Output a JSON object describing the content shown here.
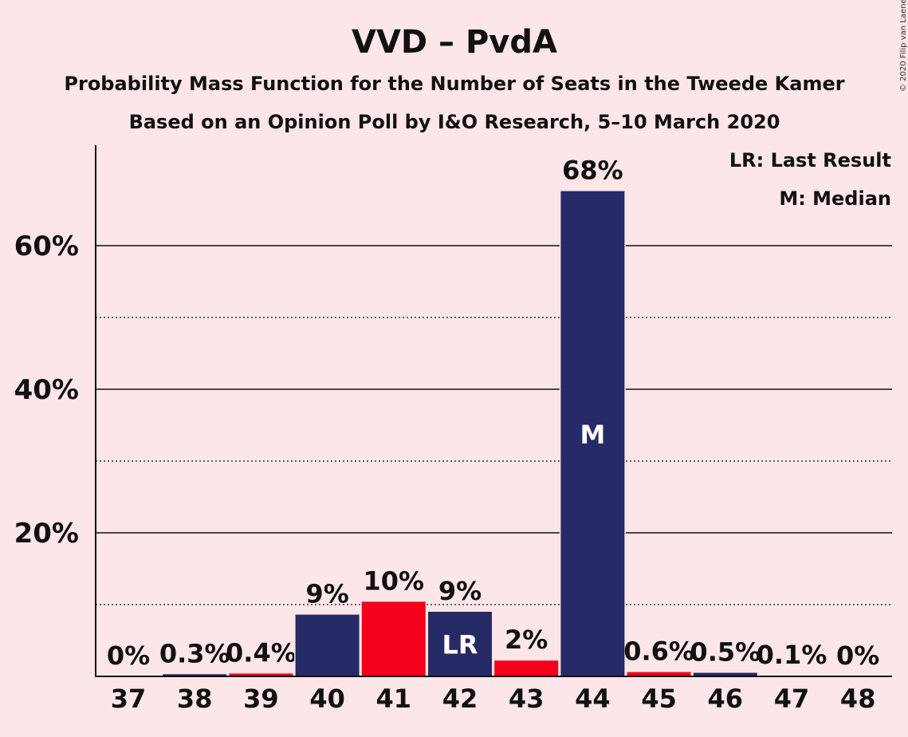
{
  "title": "VVD – PvdA",
  "subtitle1": "Probability Mass Function for the Number of Seats in the Tweede Kamer",
  "subtitle2": "Based on an Opinion Poll by I&O Research, 5–10 March 2020",
  "copyright": "© 2020 Filip van Laenen",
  "legend": {
    "lr": "LR: Last Result",
    "m": "M: Median"
  },
  "colors": {
    "background": "#fde6e8",
    "navy": "#262a66",
    "red": "#f5001a"
  },
  "chart_data": {
    "type": "bar",
    "categories": [
      "37",
      "38",
      "39",
      "40",
      "41",
      "42",
      "43",
      "44",
      "45",
      "46",
      "47",
      "48"
    ],
    "values": [
      0,
      0.3,
      0.4,
      8.6,
      10.4,
      9.0,
      2.2,
      67.6,
      0.6,
      0.5,
      0.1,
      0
    ],
    "labels": [
      "0%",
      "0.3%",
      "0.4%",
      "9%",
      "10%",
      "9%",
      "2%",
      "68%",
      "0.6%",
      "0.5%",
      "0.1%",
      "0%"
    ],
    "bar_colors": [
      "navy",
      "navy",
      "red",
      "navy",
      "red",
      "navy",
      "red",
      "navy",
      "red",
      "navy",
      "red",
      "navy"
    ],
    "markers": {
      "42": "LR",
      "44": "M"
    },
    "ylim": [
      0,
      74
    ],
    "major_ticks": [
      20,
      40,
      60
    ],
    "major_tick_labels": [
      "20%",
      "40%",
      "60%"
    ],
    "minor_gridlines": [
      10,
      30,
      50
    ],
    "grid": true,
    "legend_position": "top-right"
  }
}
